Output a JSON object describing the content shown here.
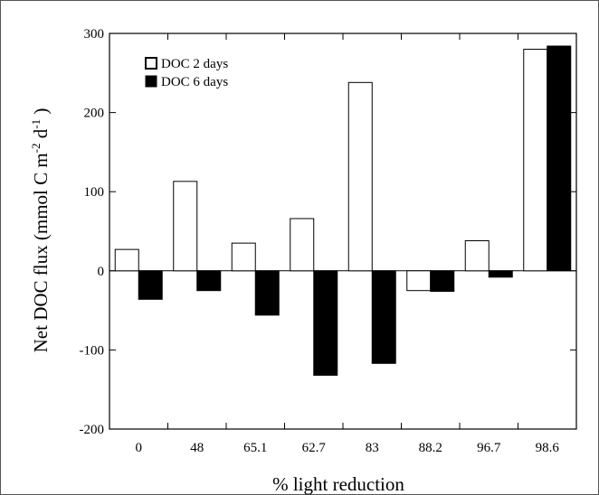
{
  "chart_data": {
    "type": "bar",
    "categories": [
      "0",
      "48",
      "65.1",
      "62.7",
      "83",
      "88.2",
      "96.7",
      "98.6"
    ],
    "series": [
      {
        "name": "DOC 2 days",
        "fill": "#ffffff",
        "values": [
          27,
          113,
          35,
          66,
          238,
          -25,
          38,
          280
        ]
      },
      {
        "name": "DOC 6 days",
        "fill": "#000000",
        "values": [
          -36,
          -25,
          -56,
          -132,
          -117,
          -26,
          -8,
          284
        ]
      }
    ],
    "xlabel": "% light reduction",
    "ylabel": "Net DOC flux (mmol C m⁻² d⁻¹)",
    "ylim": [
      -200,
      300
    ],
    "yticks": [
      -200,
      -100,
      0,
      100,
      200,
      300
    ],
    "legend_position": "top-left",
    "grid": false
  }
}
